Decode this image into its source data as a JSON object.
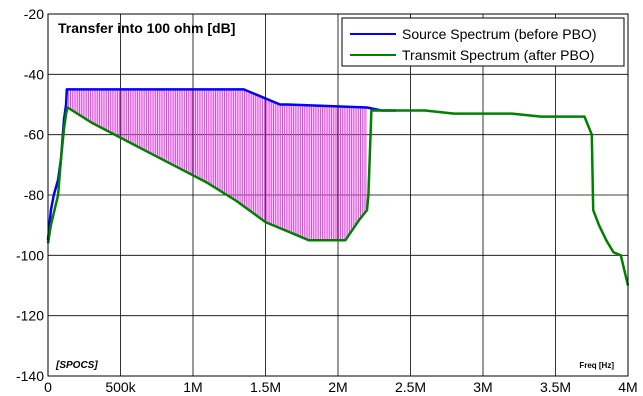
{
  "chart_data": {
    "type": "line",
    "title": "Transfer into 100 ohm [dB]",
    "corner_label": "[SPOCS]",
    "xlabel": "Freq [Hz]",
    "ylabel": "",
    "xlim": [
      0,
      4000000
    ],
    "ylim": [
      -140,
      -20
    ],
    "x_ticks": [
      0,
      500000,
      1000000,
      1500000,
      2000000,
      2500000,
      3000000,
      3500000,
      4000000
    ],
    "x_tick_labels": [
      "0",
      "500k",
      "1M",
      "1.5M",
      "2M",
      "2.5M",
      "3M",
      "3.5M",
      "4M"
    ],
    "y_ticks": [
      -20,
      -40,
      -60,
      -80,
      -100,
      -120,
      -140
    ],
    "y_tick_labels": [
      "-20",
      "-40",
      "-60",
      "-80",
      "-100",
      "-120",
      "-140"
    ],
    "grid": true,
    "legend_position": "top-right",
    "fill_between_series": {
      "between": [
        0,
        1
      ],
      "x_range": [
        130000,
        2200000
      ],
      "color": "#e040e0",
      "style": "vertical-hatch"
    },
    "series": [
      {
        "name": "Source Spectrum (before PBO)",
        "color": "#0000ff",
        "x": [
          0,
          20000,
          40000,
          70000,
          90000,
          110000,
          125000,
          130000,
          1350000,
          1600000,
          1650000,
          2200000,
          2300000,
          2400000
        ],
        "y": [
          -95,
          -85,
          -80,
          -75,
          -68,
          -55,
          -50,
          -45,
          -45,
          -50,
          -50,
          -51,
          -52,
          -52
        ]
      },
      {
        "name": "Transmit Spectrum (after PBO)",
        "color": "#008000",
        "x": [
          0,
          20000,
          40000,
          70000,
          90000,
          110000,
          125000,
          135000,
          300000,
          500000,
          700000,
          900000,
          1100000,
          1300000,
          1500000,
          1700000,
          1800000,
          2000000,
          2050000,
          2150000,
          2200000,
          2210000,
          2230000,
          2300000,
          2400000,
          2500000,
          2600000,
          2800000,
          3000000,
          3200000,
          3400000,
          3600000,
          3700000,
          3750000,
          3760000,
          3800000,
          3850000,
          3900000,
          3950000,
          4000000
        ],
        "y": [
          -96,
          -90,
          -86,
          -80,
          -68,
          -58,
          -53,
          -51,
          -56,
          -61,
          -66,
          -71,
          -76,
          -82,
          -89,
          -93,
          -95,
          -95,
          -95,
          -88,
          -85,
          -80,
          -52,
          -52,
          -52,
          -52,
          -52,
          -53,
          -53,
          -53,
          -54,
          -54,
          -54,
          -60,
          -85,
          -90,
          -95,
          -99,
          -100,
          -110
        ]
      }
    ]
  }
}
